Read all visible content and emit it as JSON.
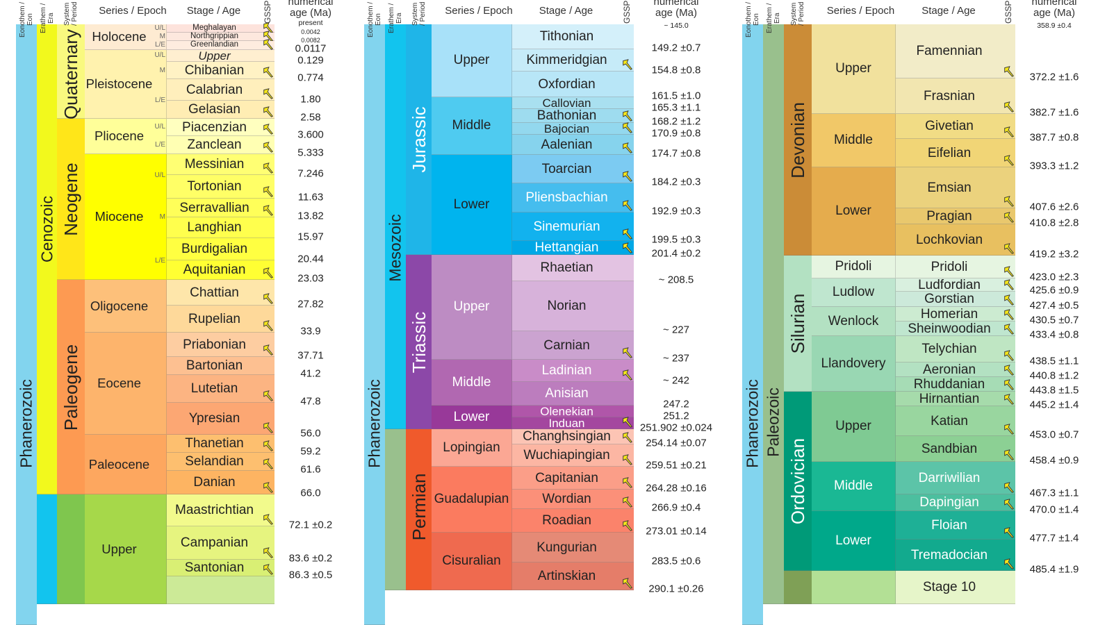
{
  "headers": {
    "eon": "Eonothem / Eon",
    "era": "Erathem / Era",
    "system": "System / Period",
    "series": "Series / Epoch",
    "stage": "Stage / Age",
    "gssp": "GSSP",
    "age_line1": "numerical",
    "age_line2": "age (Ma)"
  },
  "columns": [
    {
      "eon": {
        "name": "Phanerozoic",
        "color": "#82d4ee"
      },
      "eras": [
        {
          "name": "Cenozoic",
          "color": "#f2f91d",
          "stages": 24
        },
        {
          "name": "",
          "color": "#12c4ee",
          "stages": 4
        }
      ],
      "systems": [
        {
          "name": "Quaternary",
          "color": "#f9f97f",
          "stages": 7
        },
        {
          "name": "Neogene",
          "color": "#ffe619",
          "stages": 8
        },
        {
          "name": "Paleogene",
          "color": "#fd9a52",
          "stages": 9
        },
        {
          "name": "",
          "color": "#7fc64e",
          "stages": 4
        }
      ],
      "series": [
        {
          "name": "Holocene",
          "color": "#feebd2",
          "stages": 3
        },
        {
          "name": "Pleistocene",
          "color": "#fff2ae",
          "stages": 4
        },
        {
          "name": "Pliocene",
          "color": "#ffff99",
          "stages": 2
        },
        {
          "name": "Miocene",
          "color": "#ffff00",
          "stages": 6
        },
        {
          "name": "Oligocene",
          "color": "#fdc07a",
          "stages": 2
        },
        {
          "name": "Eocene",
          "color": "#fdb46c",
          "stages": 4
        },
        {
          "name": "Paleocene",
          "color": "#fda75f",
          "stages": 3
        },
        {
          "name": "Upper",
          "color": "#a6d84a",
          "stages": 4
        }
      ],
      "subdivisions": [
        "U/L",
        "M",
        "L/E",
        "U/L",
        "M",
        "L/E",
        "U/L",
        "L/E",
        "U/L",
        "M",
        "L/E"
      ],
      "stages": [
        {
          "name": "Meghalayan",
          "color": "#fde3dc",
          "gssp": true,
          "small": true
        },
        {
          "name": "Northgrippian",
          "color": "#fde8de",
          "gssp": true,
          "small": true
        },
        {
          "name": "Greenlandian",
          "color": "#feecdf",
          "gssp": true,
          "small": true
        },
        {
          "name": "Upper",
          "color": "#ffefd0",
          "gssp": false,
          "italic": true
        },
        {
          "name": "Chibanian",
          "color": "#fff2c4",
          "gssp": true
        },
        {
          "name": "Calabrian",
          "color": "#ffefbc",
          "gssp": true
        },
        {
          "name": "Gelasian",
          "color": "#ffedb3",
          "gssp": true
        },
        {
          "name": "Piacenzian",
          "color": "#ffffbf",
          "gssp": true
        },
        {
          "name": "Zanclean",
          "color": "#ffffb3",
          "gssp": true
        },
        {
          "name": "Messinian",
          "color": "#ffff73",
          "gssp": true
        },
        {
          "name": "Tortonian",
          "color": "#ffff66",
          "gssp": true
        },
        {
          "name": "Serravallian",
          "color": "#ffff59",
          "gssp": true
        },
        {
          "name": "Langhian",
          "color": "#ffff4d",
          "gssp": false
        },
        {
          "name": "Burdigalian",
          "color": "#ffff41",
          "gssp": false
        },
        {
          "name": "Aquitanian",
          "color": "#ffff33",
          "gssp": true
        },
        {
          "name": "Chattian",
          "color": "#fee6aa",
          "gssp": true
        },
        {
          "name": "Rupelian",
          "color": "#fed99a",
          "gssp": true
        },
        {
          "name": "Priabonian",
          "color": "#fdcda1",
          "gssp": true
        },
        {
          "name": "Bartonian",
          "color": "#fdc091",
          "gssp": false
        },
        {
          "name": "Lutetian",
          "color": "#fcb482",
          "gssp": true
        },
        {
          "name": "Ypresian",
          "color": "#fca773",
          "gssp": true
        },
        {
          "name": "Thanetian",
          "color": "#fdbf6f",
          "gssp": true
        },
        {
          "name": "Selandian",
          "color": "#fdbf6f",
          "gssp": true
        },
        {
          "name": "Danian",
          "color": "#fdb462",
          "gssp": true
        },
        {
          "name": "Maastrichtian",
          "color": "#f2fa8c",
          "gssp": true
        },
        {
          "name": "Campanian",
          "color": "#e6f47f",
          "gssp": true
        },
        {
          "name": "Santonian",
          "color": "#d9ef74",
          "gssp": true
        },
        {
          "name": "",
          "color": "#ccea97",
          "gssp": false
        }
      ],
      "ages": [
        "present",
        "0.0042",
        "0.0082",
        "0.0117",
        "0.129",
        "0.774",
        "1.80",
        "2.58",
        "3.600",
        "5.333",
        "7.246",
        "11.63",
        "13.82",
        "15.97",
        "20.44",
        "23.03",
        "27.82",
        "33.9",
        "37.71",
        "41.2",
        "47.8",
        "56.0",
        "59.2",
        "61.6",
        "66.0",
        "72.1 ±0.2",
        "83.6 ±0.2",
        "86.3 ±0.5"
      ]
    },
    {
      "eon": {
        "name": "Phanerozoic",
        "color": "#82d4ee"
      },
      "eras": [
        {
          "name": "Mesozoic",
          "color": "#12c4ee",
          "stages": 18
        },
        {
          "name": "",
          "color": "#99c08d",
          "stages": 7
        }
      ],
      "systems": [
        {
          "name": "Jurassic",
          "color": "#1fb5e8",
          "stages": 11,
          "fg": "#ffffff"
        },
        {
          "name": "Triassic",
          "color": "#8c48a8",
          "stages": 7,
          "fg": "#ffffff"
        },
        {
          "name": "Permian",
          "color": "#f05a2c",
          "stages": 7
        }
      ],
      "series": [
        {
          "name": "Upper",
          "color": "#a8e1f9",
          "stages": 3
        },
        {
          "name": "Middle",
          "color": "#4fcbf0",
          "stages": 4
        },
        {
          "name": "Lower",
          "color": "#00b4ee",
          "stages": 4
        },
        {
          "name": "Upper",
          "color": "#bd8cc3",
          "stages": 3,
          "fg": "#ffffff"
        },
        {
          "name": "Middle",
          "color": "#b168b1",
          "stages": 2,
          "fg": "#ffffff"
        },
        {
          "name": "Lower",
          "color": "#983999",
          "stages": 2,
          "fg": "#ffffff"
        },
        {
          "name": "Lopingian",
          "color": "#fba794",
          "stages": 2
        },
        {
          "name": "Guadalupian",
          "color": "#fb7b5f",
          "stages": 3
        },
        {
          "name": "Cisuralian",
          "color": "#ef6a4f",
          "stages": 2
        }
      ],
      "subdivisions": [],
      "stages": [
        {
          "name": "Tithonian",
          "color": "#d4f0fa",
          "gssp": false
        },
        {
          "name": "Kimmeridgian",
          "color": "#c6ebf8",
          "gssp": true
        },
        {
          "name": "Oxfordian",
          "color": "#b8e6f7",
          "gssp": false
        },
        {
          "name": "Callovian",
          "color": "#a9e0f0",
          "gssp": false
        },
        {
          "name": "Bathonian",
          "color": "#9edcef",
          "gssp": true
        },
        {
          "name": "Bajocian",
          "color": "#93d8ee",
          "gssp": true
        },
        {
          "name": "Aalenian",
          "color": "#86d3ed",
          "gssp": true
        },
        {
          "name": "Toarcian",
          "color": "#7ccbf2",
          "gssp": true
        },
        {
          "name": "Pliensbachian",
          "color": "#45bdee",
          "gssp": true,
          "fg": "#ffffff"
        },
        {
          "name": "Sinemurian",
          "color": "#12b2ee",
          "gssp": true,
          "fg": "#ffffff"
        },
        {
          "name": "Hettangian",
          "color": "#00a8e6",
          "gssp": true,
          "fg": "#ffffff"
        },
        {
          "name": "Rhaetian",
          "color": "#e3c3e2",
          "gssp": false
        },
        {
          "name": "Norian",
          "color": "#d7b2da",
          "gssp": false
        },
        {
          "name": "Carnian",
          "color": "#cba3d0",
          "gssp": true
        },
        {
          "name": "Ladinian",
          "color": "#c98cc8",
          "gssp": true,
          "fg": "#ffffff"
        },
        {
          "name": "Anisian",
          "color": "#bc7dbe",
          "gssp": false,
          "fg": "#ffffff"
        },
        {
          "name": "Olenekian",
          "color": "#b056a9",
          "gssp": false,
          "fg": "#ffffff"
        },
        {
          "name": "Induan",
          "color": "#a4479f",
          "gssp": true,
          "fg": "#ffffff"
        },
        {
          "name": "Changhsingian",
          "color": "#fcc4b4",
          "gssp": true
        },
        {
          "name": "Wuchiapingian",
          "color": "#fcb6a3",
          "gssp": true
        },
        {
          "name": "Capitanian",
          "color": "#fb9e88",
          "gssp": true
        },
        {
          "name": "Wordian",
          "color": "#fb9079",
          "gssp": true
        },
        {
          "name": "Roadian",
          "color": "#fb836b",
          "gssp": true
        },
        {
          "name": "Kungurian",
          "color": "#e58a76",
          "gssp": false
        },
        {
          "name": "Artinskian",
          "color": "#e57d69",
          "gssp": true
        }
      ],
      "ages": [
        "~ 145.0",
        "149.2 ±0.7",
        "154.8 ±0.8",
        "161.5 ±1.0",
        "165.3 ±1.1",
        "168.2 ±1.2",
        "170.9 ±0.8",
        "174.7 ±0.8",
        "184.2 ±0.3",
        "192.9 ±0.3",
        "199.5 ±0.3",
        "201.4 ±0.2",
        "~ 208.5",
        "~ 227",
        "~ 237",
        "~ 242",
        "247.2",
        "251.2",
        "251.902 ±0.024",
        "254.14 ±0.07",
        "259.51 ±0.21",
        "264.28 ±0.16",
        "266.9 ±0.4",
        "273.01 ±0.14",
        "283.5 ±0.6",
        "290.1 ±0.26"
      ]
    },
    {
      "eon": {
        "name": "Phanerozoic",
        "color": "#82d4ee"
      },
      "eras": [
        {
          "name": "Paleozoic",
          "color": "#99c08d",
          "stages": 23
        }
      ],
      "systems": [
        {
          "name": "Devonian",
          "color": "#cb8c37",
          "stages": 7
        },
        {
          "name": "Silurian",
          "color": "#b3e1c2",
          "stages": 8
        },
        {
          "name": "Ordovician",
          "color": "#009a78",
          "stages": 7,
          "fg": "#ffffff"
        },
        {
          "name": "",
          "color": "#7fa056",
          "stages": 1
        }
      ],
      "series": [
        {
          "name": "Upper",
          "color": "#f1e19d",
          "stages": 2
        },
        {
          "name": "Middle",
          "color": "#f1c868",
          "stages": 2
        },
        {
          "name": "Lower",
          "color": "#e5ac4d",
          "stages": 3
        },
        {
          "name": "Pridoli",
          "color": "#e6f5e1",
          "stages": 1
        },
        {
          "name": "Ludlow",
          "color": "#bfe6cf",
          "stages": 2
        },
        {
          "name": "Wenlock",
          "color": "#b3e1c2",
          "stages": 2
        },
        {
          "name": "Llandovery",
          "color": "#99d7b3",
          "stages": 3
        },
        {
          "name": "Upper",
          "color": "#7fca93",
          "stages": 3
        },
        {
          "name": "Middle",
          "color": "#1ab894",
          "stages": 2,
          "fg": "#ffffff"
        },
        {
          "name": "Lower",
          "color": "#00a88a",
          "stages": 2,
          "fg": "#ffffff"
        },
        {
          "name": "",
          "color": "#b3e095",
          "stages": 1
        }
      ],
      "subdivisions": [],
      "stages": [
        {
          "name": "Famennian",
          "color": "#f2ecc8",
          "gssp": true
        },
        {
          "name": "Frasnian",
          "color": "#f2e6b0",
          "gssp": true
        },
        {
          "name": "Givetian",
          "color": "#f1dc85",
          "gssp": true
        },
        {
          "name": "Eifelian",
          "color": "#f1d576",
          "gssp": true
        },
        {
          "name": "Emsian",
          "color": "#ebd27d",
          "gssp": true
        },
        {
          "name": "Pragian",
          "color": "#e9c86d",
          "gssp": true
        },
        {
          "name": "Lochkovian",
          "color": "#e8c060",
          "gssp": true
        },
        {
          "name": "Pridoli",
          "color": "#e6f5e1",
          "gssp": true
        },
        {
          "name": "Ludfordian",
          "color": "#d9f0df",
          "gssp": true
        },
        {
          "name": "Gorstian",
          "color": "#cce9da",
          "gssp": true
        },
        {
          "name": "Homerian",
          "color": "#ccebd1",
          "gssp": true
        },
        {
          "name": "Sheinwoodian",
          "color": "#bfe6cf",
          "gssp": true
        },
        {
          "name": "Telychian",
          "color": "#bfe6c3",
          "gssp": true
        },
        {
          "name": "Aeronian",
          "color": "#b3e1c2",
          "gssp": true
        },
        {
          "name": "Rhuddanian",
          "color": "#a6dcb5",
          "gssp": true
        },
        {
          "name": "Hirnantian",
          "color": "#a6dbab",
          "gssp": true
        },
        {
          "name": "Katian",
          "color": "#99d69f",
          "gssp": true
        },
        {
          "name": "Sandbian",
          "color": "#8cd094",
          "gssp": true
        },
        {
          "name": "Darriwilian",
          "color": "#5cc4a8",
          "gssp": true,
          "fg": "#ffffff"
        },
        {
          "name": "Dapingian",
          "color": "#4cbf9f",
          "gssp": true,
          "fg": "#ffffff"
        },
        {
          "name": "Floian",
          "color": "#1eb096",
          "gssp": true,
          "fg": "#ffffff"
        },
        {
          "name": "Tremadocian",
          "color": "#12aa8e",
          "gssp": true,
          "fg": "#ffffff"
        },
        {
          "name": "Stage 10",
          "color": "#e6f5c9",
          "gssp": false
        }
      ],
      "ages": [
        "358.9 ±0.4",
        "372.2 ±1.6",
        "382.7 ±1.6",
        "387.7 ±0.8",
        "393.3 ±1.2",
        "407.6 ±2.6",
        "410.8 ±2.8",
        "419.2 ±3.2",
        "423.0 ±2.3",
        "425.6 ±0.9",
        "427.4 ±0.5",
        "430.5 ±0.7",
        "433.4 ±0.8",
        "438.5 ±1.1",
        "440.8 ±1.2",
        "443.8 ±1.5",
        "445.2 ±1.4",
        "453.0 ±0.7",
        "458.4 ±0.9",
        "467.3 ±1.1",
        "470.0 ±1.4",
        "477.7 ±1.4",
        "485.4 ±1.9"
      ]
    }
  ],
  "colors": {
    "gssp_spike": "#f5e61b",
    "boundary_line": "#999999"
  }
}
